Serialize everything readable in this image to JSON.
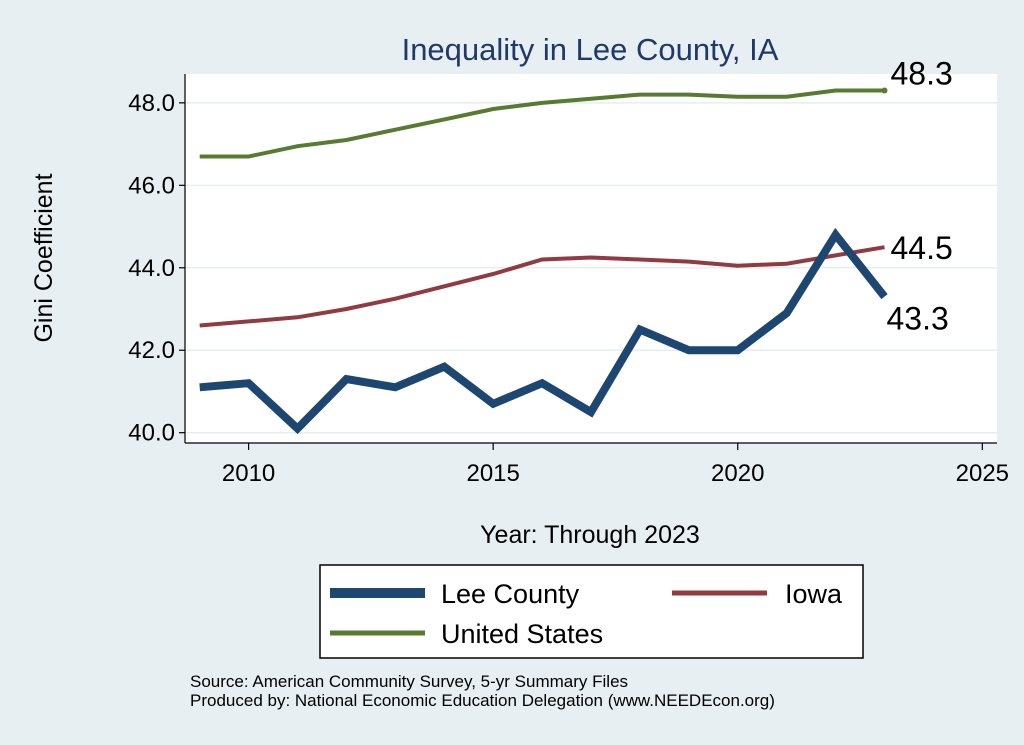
{
  "chart_data": {
    "type": "line",
    "title": "Inequality in Lee County, IA",
    "xlabel": "Year: Through 2023",
    "ylabel": "Gini Coefficient",
    "xlim": [
      2008.7,
      2025.3
    ],
    "ylim": [
      39.75,
      48.7
    ],
    "xticks": [
      2010,
      2015,
      2020,
      2025
    ],
    "yticks": [
      40,
      42,
      44,
      46,
      48
    ],
    "ytick_labels": [
      "40.0",
      "42.0",
      "44.0",
      "46.0",
      "48.0"
    ],
    "grid": true,
    "series": [
      {
        "name": "Lee County",
        "color": "#1d4770",
        "x": [
          2009,
          2010,
          2011,
          2012,
          2013,
          2014,
          2015,
          2016,
          2017,
          2018,
          2019,
          2020,
          2021,
          2022,
          2023
        ],
        "values": [
          41.1,
          41.2,
          40.1,
          41.3,
          41.1,
          41.6,
          40.7,
          41.2,
          40.5,
          42.5,
          42.0,
          42.0,
          42.9,
          44.8,
          43.3
        ],
        "end_label": "43.3"
      },
      {
        "name": "Iowa",
        "color": "#913a3f",
        "x": [
          2009,
          2010,
          2011,
          2012,
          2013,
          2014,
          2015,
          2016,
          2017,
          2018,
          2019,
          2020,
          2021,
          2022,
          2023
        ],
        "values": [
          42.6,
          42.7,
          42.8,
          43.0,
          43.25,
          43.55,
          43.85,
          44.2,
          44.25,
          44.2,
          44.15,
          44.05,
          44.1,
          44.3,
          44.5
        ],
        "end_label": "44.5"
      },
      {
        "name": "United States",
        "color": "#587b32",
        "x": [
          2009,
          2010,
          2011,
          2012,
          2013,
          2014,
          2015,
          2016,
          2017,
          2018,
          2019,
          2020,
          2021,
          2022,
          2023
        ],
        "values": [
          46.7,
          46.7,
          46.95,
          47.1,
          47.35,
          47.6,
          47.85,
          48.0,
          48.1,
          48.2,
          48.2,
          48.15,
          48.15,
          48.3,
          48.3
        ],
        "end_label": "48.3"
      }
    ],
    "legend": {
      "position": "bottom",
      "items": [
        "Lee County",
        "Iowa",
        "United States"
      ]
    }
  },
  "source_note": "Source: American Community Survey, 5-yr Summary Files",
  "produced_by": "Produced by: National Economic Education Delegation (www.NEEDEcon.org)"
}
